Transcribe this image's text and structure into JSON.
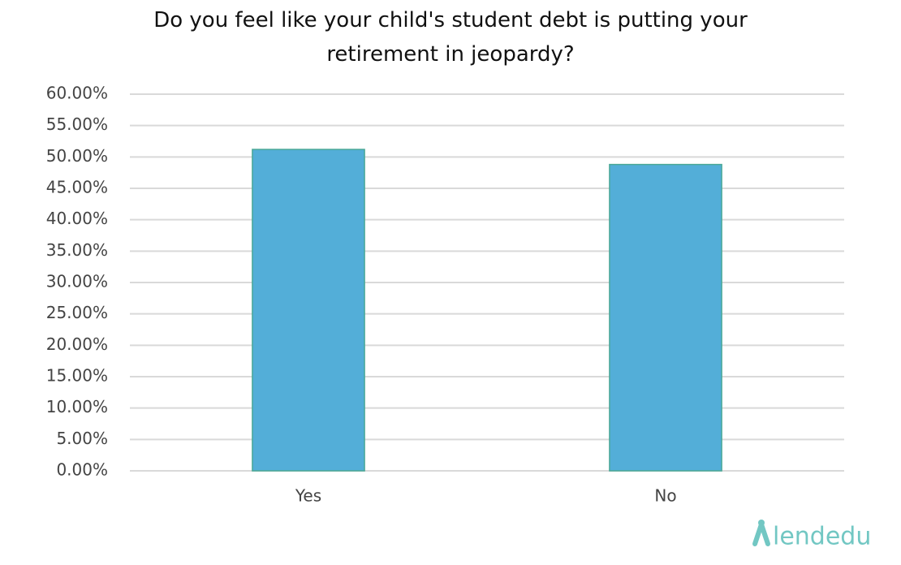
{
  "chart_data": {
    "type": "bar",
    "title": "Do you feel like your child's student debt is putting your retirement in jeopardy?",
    "categories": [
      "Yes",
      "No"
    ],
    "values": [
      51.2,
      48.8
    ],
    "color": "#53aed8",
    "ylim": [
      0,
      60
    ],
    "yticks": [
      {
        "value": 0,
        "label": "0.00%"
      },
      {
        "value": 5,
        "label": "5.00%"
      },
      {
        "value": 10,
        "label": "10.00%"
      },
      {
        "value": 15,
        "label": "15.00%"
      },
      {
        "value": 20,
        "label": "20.00%"
      },
      {
        "value": 25,
        "label": "25.00%"
      },
      {
        "value": 30,
        "label": "30.00%"
      },
      {
        "value": 35,
        "label": "35.00%"
      },
      {
        "value": 40,
        "label": "40.00%"
      },
      {
        "value": 45,
        "label": "45.00%"
      },
      {
        "value": 50,
        "label": "50.00%"
      },
      {
        "value": 55,
        "label": "55.00%"
      },
      {
        "value": 60,
        "label": "60.00%"
      }
    ],
    "grid": true,
    "watermark": "lendedu"
  }
}
